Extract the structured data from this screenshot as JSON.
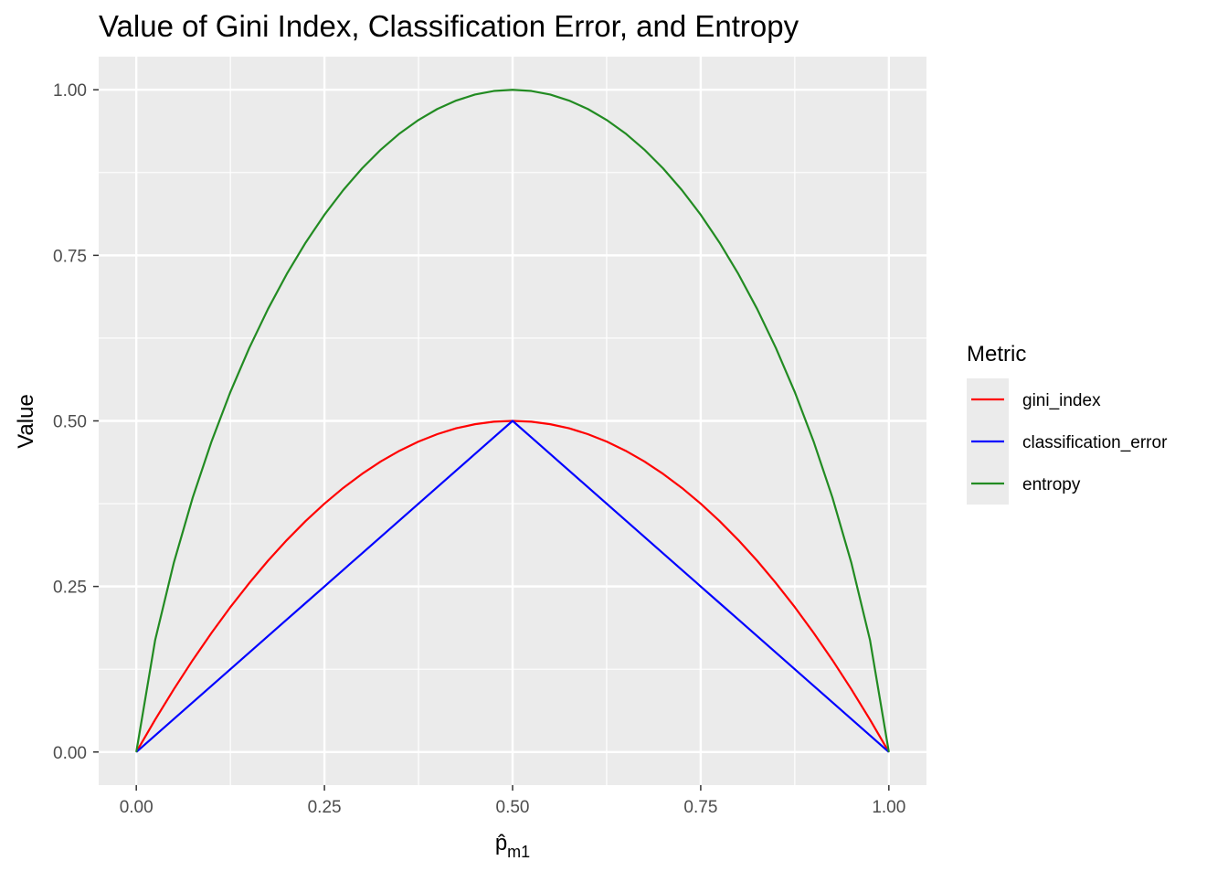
{
  "chart_data": {
    "type": "line",
    "title": "Value of Gini Index, Classification Error, and Entropy",
    "xlabel": "p̂m1",
    "xlabel_main": "p̂",
    "xlabel_sub": "m1",
    "ylabel": "Value",
    "xlim": [
      -0.05,
      1.05
    ],
    "ylim": [
      -0.05,
      1.05
    ],
    "x_ticks": [
      0,
      0.25,
      0.5,
      0.75,
      1
    ],
    "x_tick_labels": [
      "0.00",
      "0.25",
      "0.50",
      "0.75",
      "1.00"
    ],
    "y_ticks": [
      0,
      0.25,
      0.5,
      0.75,
      1
    ],
    "y_tick_labels": [
      "0.00",
      "0.25",
      "0.50",
      "0.75",
      "1.00"
    ],
    "grid": true,
    "legend_position": "right",
    "legend_title": "Metric",
    "x": [
      0,
      0.025,
      0.05,
      0.075,
      0.1,
      0.125,
      0.15,
      0.175,
      0.2,
      0.225,
      0.25,
      0.275,
      0.3,
      0.325,
      0.35,
      0.375,
      0.4,
      0.425,
      0.45,
      0.475,
      0.5,
      0.525,
      0.55,
      0.575,
      0.6,
      0.625,
      0.65,
      0.675,
      0.7,
      0.725,
      0.75,
      0.775,
      0.8,
      0.825,
      0.85,
      0.875,
      0.9,
      0.925,
      0.95,
      0.975,
      1
    ],
    "series": [
      {
        "name": "gini_index",
        "color": "#ff0000",
        "values": [
          0,
          0.0488,
          0.095,
          0.1388,
          0.18,
          0.2188,
          0.255,
          0.2888,
          0.32,
          0.3488,
          0.375,
          0.3988,
          0.42,
          0.4388,
          0.455,
          0.4688,
          0.48,
          0.4888,
          0.495,
          0.4988,
          0.5,
          0.4988,
          0.495,
          0.4888,
          0.48,
          0.4688,
          0.455,
          0.4388,
          0.42,
          0.3988,
          0.375,
          0.3488,
          0.32,
          0.2888,
          0.255,
          0.2188,
          0.18,
          0.1388,
          0.095,
          0.0488,
          0
        ]
      },
      {
        "name": "classification_error",
        "color": "#0000ff",
        "values": [
          0,
          0.025,
          0.05,
          0.075,
          0.1,
          0.125,
          0.15,
          0.175,
          0.2,
          0.225,
          0.25,
          0.275,
          0.3,
          0.325,
          0.35,
          0.375,
          0.4,
          0.425,
          0.45,
          0.475,
          0.5,
          0.475,
          0.45,
          0.425,
          0.4,
          0.375,
          0.35,
          0.325,
          0.3,
          0.275,
          0.25,
          0.225,
          0.2,
          0.175,
          0.15,
          0.125,
          0.1,
          0.075,
          0.05,
          0.025,
          0
        ]
      },
      {
        "name": "entropy",
        "color": "#228b22",
        "values": [
          0,
          0.1687,
          0.2864,
          0.3843,
          0.469,
          0.5436,
          0.6098,
          0.669,
          0.7219,
          0.7692,
          0.8113,
          0.8485,
          0.8813,
          0.9097,
          0.9341,
          0.9544,
          0.971,
          0.9837,
          0.9928,
          0.9982,
          1,
          0.9982,
          0.9928,
          0.9837,
          0.971,
          0.9544,
          0.9341,
          0.9097,
          0.8813,
          0.8485,
          0.8113,
          0.7692,
          0.7219,
          0.669,
          0.6098,
          0.5436,
          0.469,
          0.3843,
          0.2864,
          0.1687,
          0
        ]
      }
    ]
  }
}
